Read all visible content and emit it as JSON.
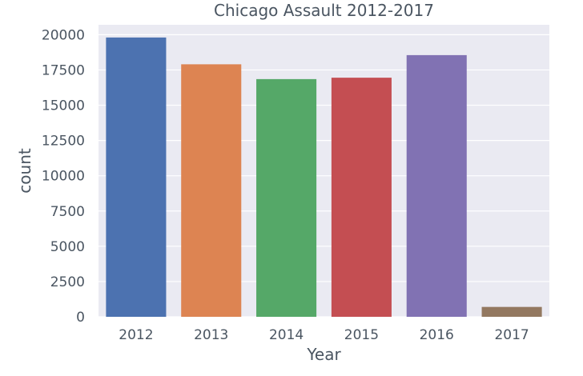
{
  "chart_data": {
    "type": "bar",
    "title": "Chicago Assault 2012-2017",
    "xlabel": "Year",
    "ylabel": "count",
    "categories": [
      "2012",
      "2013",
      "2014",
      "2015",
      "2016",
      "2017"
    ],
    "values": [
      19800,
      17900,
      16850,
      16950,
      18550,
      700
    ],
    "colors": [
      "#4c72b0",
      "#dd8452",
      "#55a868",
      "#c44e52",
      "#8172b3",
      "#937860"
    ],
    "ylim": [
      0,
      20700
    ],
    "yticks": [
      0,
      2500,
      5000,
      7500,
      10000,
      12500,
      15000,
      17500,
      20000
    ],
    "ytick_labels": [
      "0",
      "2500",
      "5000",
      "7500",
      "10000",
      "12500",
      "15000",
      "17500",
      "20000"
    ],
    "grid": true,
    "background": "#eaeaf2"
  }
}
